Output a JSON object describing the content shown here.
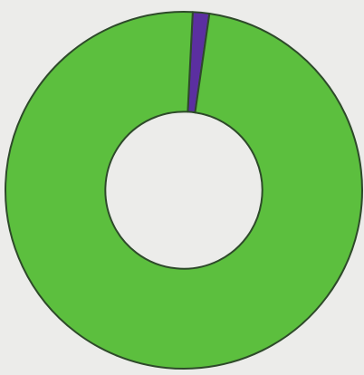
{
  "chart_data": {
    "type": "pie",
    "values": [
      1.5,
      98.5
    ],
    "colors": [
      "#5b2fa0",
      "#5cbf3e"
    ],
    "hole": 0.44
  }
}
